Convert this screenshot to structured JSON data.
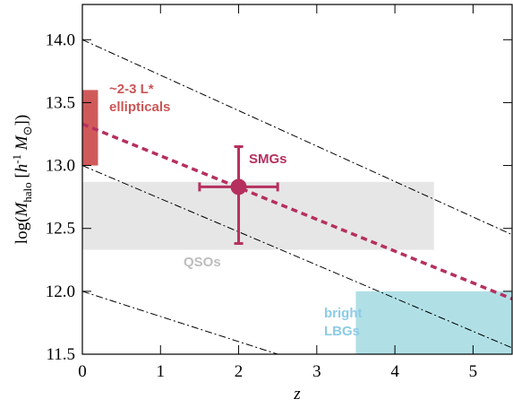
{
  "chart_data": {
    "type": "composite",
    "xlabel": "z",
    "ylabel_parts": [
      "log(",
      "M",
      "halo",
      " [",
      "h",
      "-1",
      " M",
      "⊙",
      "])"
    ],
    "xlim": [
      0,
      5.5
    ],
    "ylim": [
      11.5,
      14.28
    ],
    "xticks": [
      0,
      1,
      2,
      3,
      4,
      5
    ],
    "yticks": [
      11.5,
      {
        "value": 12.0,
        "label": "12.0"
      },
      12.5,
      {
        "value": 13.0,
        "label": "13.0"
      },
      13.5,
      {
        "value": 14.0,
        "label": "14.0"
      }
    ],
    "regions": [
      {
        "x": [
          0,
          0.2
        ],
        "y": [
          13.0,
          13.6
        ],
        "color": "#d05a5a",
        "label": [
          "~2-3 L*",
          "ellipticals"
        ],
        "label_color": "#cc5555"
      },
      {
        "x": [
          0,
          4.5
        ],
        "y": [
          12.33,
          12.87
        ],
        "color": "#e6e6e6",
        "label": [
          "QSOs"
        ],
        "label_color": "#bdbdbd"
      },
      {
        "x": [
          3.5,
          5.5
        ],
        "y": [
          11.5,
          12.0
        ],
        "color": "#b0e0e6",
        "label": [
          "bright",
          "LBGs"
        ],
        "label_color": "#8ccbe6"
      }
    ],
    "lines": [
      {
        "x": [
          0,
          5.5
        ],
        "y": [
          14.0,
          12.45
        ],
        "style": "dashdot",
        "color": "#000000"
      },
      {
        "x": [
          0,
          5.5
        ],
        "y": [
          13.0,
          11.55
        ],
        "style": "dashdot",
        "color": "#000000"
      },
      {
        "x": [
          0,
          2.5
        ],
        "y": [
          12.0,
          11.5
        ],
        "style": "dashdot",
        "color": "#000000"
      },
      {
        "x": [
          0,
          5.5
        ],
        "y": [
          13.33,
          11.94
        ],
        "style": "dashed",
        "color": "#b5305f"
      }
    ],
    "point": {
      "label": "SMGs",
      "x": 2,
      "y": 12.83,
      "xerr": [
        0.5,
        0.5
      ],
      "yerr": [
        0.45,
        0.32
      ],
      "color": "#b5305f"
    }
  }
}
